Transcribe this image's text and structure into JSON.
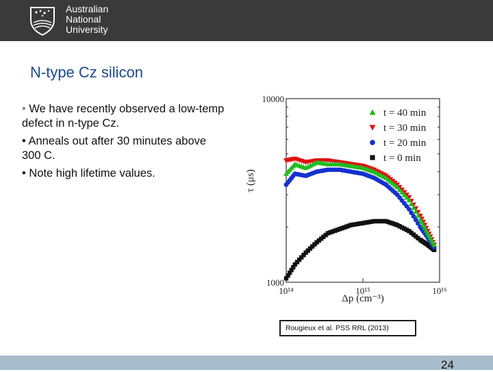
{
  "header": {
    "logo_lines": [
      "Australian",
      "National",
      "University"
    ],
    "bg_color": "#3a3a3a"
  },
  "slide": {
    "title": "N-type Cz silicon",
    "bullets": [
      "We have recently observed a low-temp defect in n-type Cz.",
      "Anneals out after 30 minutes above 300 C.",
      "Note high lifetime values."
    ],
    "citation": "Rougieux et al. PSS RRL (2013)",
    "page_number": "24"
  },
  "chart_data": {
    "type": "scatter",
    "xlabel": "Δp (cm⁻³)",
    "ylabel": "τ (μs)",
    "x_scale": "log",
    "y_scale": "log",
    "xlim": [
      100000000000000.0,
      1e+16
    ],
    "ylim": [
      1000,
      10000
    ],
    "x_ticks": [
      "10¹⁴",
      "10¹⁵",
      "10¹⁶"
    ],
    "y_ticks": [
      "10000",
      "1000"
    ],
    "legend_position": "top-right",
    "series": [
      {
        "name": "t = 40 min",
        "marker": "triangle-up",
        "color": "#22bb22",
        "x": [
          100000000000000.0,
          130000000000000.0,
          180000000000000.0,
          250000000000000.0,
          350000000000000.0,
          500000000000000.0,
          700000000000000.0,
          1000000000000000.0,
          1400000000000000.0,
          2000000000000000.0,
          2800000000000000.0,
          4000000000000000.0,
          5600000000000000.0,
          7000000000000000.0,
          8500000000000000.0
        ],
        "y": [
          3900,
          4400,
          4200,
          4500,
          4400,
          4400,
          4300,
          4200,
          4000,
          3700,
          3300,
          2800,
          2200,
          1850,
          1600
        ]
      },
      {
        "name": "t = 30 min",
        "marker": "triangle-down",
        "color": "#e01010",
        "x": [
          100000000000000.0,
          130000000000000.0,
          180000000000000.0,
          250000000000000.0,
          350000000000000.0,
          500000000000000.0,
          700000000000000.0,
          1000000000000000.0,
          1400000000000000.0,
          2000000000000000.0,
          2800000000000000.0,
          4000000000000000.0,
          5600000000000000.0,
          7000000000000000.0,
          8500000000000000.0
        ],
        "y": [
          4600,
          4700,
          4500,
          4600,
          4600,
          4500,
          4400,
          4300,
          4100,
          3800,
          3400,
          2900,
          2300,
          1900,
          1600
        ]
      },
      {
        "name": "t = 20 min",
        "marker": "circle",
        "color": "#1530d0",
        "x": [
          100000000000000.0,
          130000000000000.0,
          180000000000000.0,
          250000000000000.0,
          350000000000000.0,
          500000000000000.0,
          700000000000000.0,
          1000000000000000.0,
          1400000000000000.0,
          2000000000000000.0,
          2800000000000000.0,
          4000000000000000.0,
          5600000000000000.0,
          7000000000000000.0,
          8500000000000000.0
        ],
        "y": [
          3400,
          3900,
          3800,
          4000,
          4100,
          4100,
          4000,
          3900,
          3700,
          3400,
          3000,
          2500,
          2000,
          1750,
          1550
        ]
      },
      {
        "name": "t = 0 min",
        "marker": "square",
        "color": "#111111",
        "x": [
          100000000000000.0,
          130000000000000.0,
          180000000000000.0,
          250000000000000.0,
          350000000000000.0,
          500000000000000.0,
          700000000000000.0,
          1000000000000000.0,
          1400000000000000.0,
          2000000000000000.0,
          2800000000000000.0,
          4000000000000000.0,
          5600000000000000.0,
          7000000000000000.0,
          8500000000000000.0
        ],
        "y": [
          1050,
          1250,
          1450,
          1650,
          1850,
          1950,
          2050,
          2100,
          2150,
          2150,
          2050,
          1900,
          1700,
          1600,
          1500
        ]
      }
    ]
  }
}
